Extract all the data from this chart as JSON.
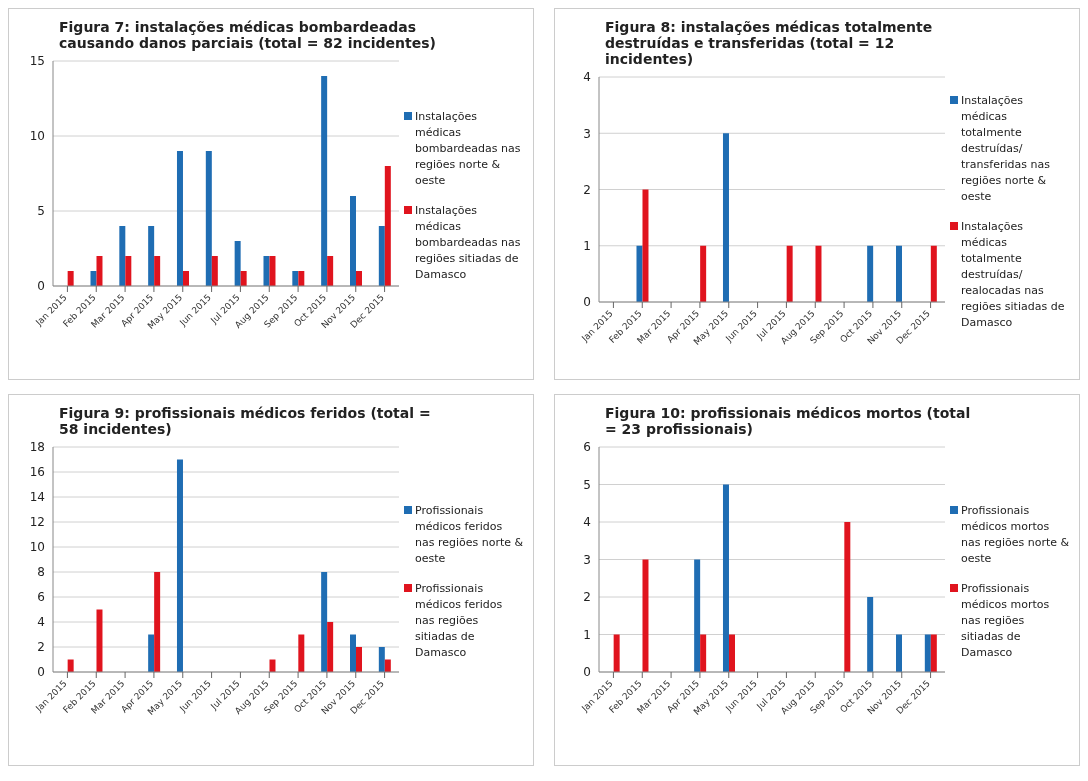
{
  "chart_data": [
    {
      "type": "bar",
      "title": "Figura 7: instalações médicas bombardeadas causando danos parciais (total = 82 incidentes)",
      "categories": [
        "Jan 2015",
        "Feb 2015",
        "Mar 2015",
        "Apr 2015",
        "May 2015",
        "Jun 2015",
        "Jul 2015",
        "Aug 2015",
        "Sep 2015",
        "Oct 2015",
        "Nov 2015",
        "Dec 2015"
      ],
      "series": [
        {
          "name": "Instalações médicas bombardeadas nas regiões norte & oeste",
          "color": "#1f6db3",
          "values": [
            0,
            1,
            4,
            4,
            9,
            9,
            3,
            2,
            1,
            14,
            6,
            4
          ]
        },
        {
          "name": "Instalações médicas bombardeadas nas regiões sitiadas de Damasco",
          "color": "#e0141e",
          "values": [
            1,
            2,
            2,
            2,
            1,
            2,
            1,
            2,
            1,
            2,
            1,
            8
          ]
        }
      ],
      "ylim": [
        0,
        15
      ],
      "yticks": [
        0,
        5,
        10,
        15
      ],
      "grid": "y",
      "legend": "right"
    },
    {
      "type": "bar",
      "title": "Figura 8: instalações médicas totalmente destruídas e transferidas (total = 12 incidentes)",
      "categories": [
        "Jan 2015",
        "Feb 2015",
        "Mar 2015",
        "Apr 2015",
        "May 2015",
        "Jun 2015",
        "Jul 2015",
        "Aug 2015",
        "Sep 2015",
        "Oct 2015",
        "Nov 2015",
        "Dec 2015"
      ],
      "series": [
        {
          "name": "Instalações médicas totalmente destruídas/ transferidas nas regiões norte & oeste",
          "color": "#1f6db3",
          "values": [
            0,
            1,
            0,
            0,
            3,
            0,
            0,
            0,
            0,
            1,
            1,
            0
          ]
        },
        {
          "name": "Instalações médicas totalmente destruídas/ realocadas nas regiões sitiadas de Damasco",
          "color": "#e0141e",
          "values": [
            0,
            2,
            0,
            1,
            0,
            0,
            1,
            1,
            0,
            0,
            0,
            1
          ]
        }
      ],
      "ylim": [
        0,
        4
      ],
      "yticks": [
        0,
        1,
        2,
        3,
        4
      ],
      "grid": "y",
      "legend": "right"
    },
    {
      "type": "bar",
      "title": "Figura 9: profissionais médicos feridos (total = 58 incidentes)",
      "categories": [
        "Jan 2015",
        "Feb 2015",
        "Mar 2015",
        "Apr 2015",
        "May 2015",
        "Jun 2015",
        "Jul 2015",
        "Aug 2015",
        "Sep 2015",
        "Oct 2015",
        "Nov 2015",
        "Dec 2015"
      ],
      "series": [
        {
          "name": "Profissionais médicos feridos nas regiões norte & oeste",
          "color": "#1f6db3",
          "values": [
            0,
            0,
            0,
            3,
            17,
            0,
            0,
            0,
            0,
            8,
            3,
            2
          ]
        },
        {
          "name": "Profissionais médicos feridos nas regiões sitiadas de Damasco",
          "color": "#e0141e",
          "values": [
            1,
            5,
            0,
            8,
            0,
            0,
            0,
            1,
            3,
            4,
            2,
            1
          ]
        }
      ],
      "ylim": [
        0,
        18
      ],
      "yticks": [
        0,
        2,
        4,
        6,
        8,
        10,
        12,
        14,
        16,
        18
      ],
      "grid": "y",
      "legend": "right"
    },
    {
      "type": "bar",
      "title": "Figura 10: profissionais médicos mortos (total = 23 profissionais)",
      "categories": [
        "Jan 2015",
        "Feb 2015",
        "Mar 2015",
        "Apr 2015",
        "May 2015",
        "Jun 2015",
        "Jul 2015",
        "Aug 2015",
        "Sep 2015",
        "Oct 2015",
        "Nov 2015",
        "Dec 2015"
      ],
      "series": [
        {
          "name": "Profissionais médicos mortos nas regiões norte & oeste",
          "color": "#1f6db3",
          "values": [
            0,
            0,
            0,
            3,
            5,
            0,
            0,
            0,
            0,
            2,
            1,
            1
          ]
        },
        {
          "name": "Profissionais médicos mortos nas regiões sitiadas de Damasco",
          "color": "#e0141e",
          "values": [
            1,
            3,
            0,
            1,
            1,
            0,
            0,
            0,
            4,
            0,
            0,
            1
          ]
        }
      ],
      "ylim": [
        0,
        6
      ],
      "yticks": [
        0,
        1,
        2,
        3,
        4,
        5,
        6
      ],
      "grid": "y",
      "legend": "right"
    }
  ]
}
